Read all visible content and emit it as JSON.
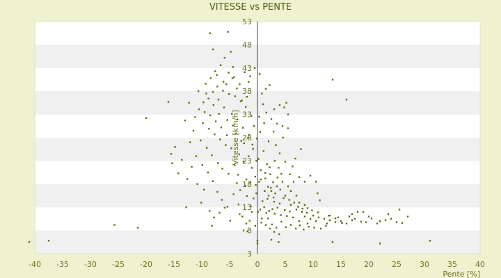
{
  "chart_data": {
    "type": "scatter",
    "title": "VITESSE vs PENTE",
    "xlabel": "Pente [%]",
    "ylabel": "Vitesse [km/h]",
    "xlim": [
      -40,
      40
    ],
    "ylim": [
      3,
      53
    ],
    "xticks": [
      -40,
      -35,
      -30,
      -25,
      -20,
      -15,
      -10,
      -5,
      0,
      5,
      10,
      15,
      20,
      25,
      30,
      35,
      40
    ],
    "yticks": [
      3,
      8,
      13,
      18,
      23,
      28,
      33,
      38,
      43,
      48,
      53
    ],
    "grid": "horizontal alternating bands",
    "colors": {
      "point": "#5e6e10",
      "band": "#f0f0f0",
      "plot_bg": "#ffffff",
      "axis": "#444444"
    },
    "points": [
      [
        -41,
        5.5
      ],
      [
        -37.5,
        5.8
      ],
      [
        -25.7,
        9.2
      ],
      [
        -21.5,
        8.6
      ],
      [
        -20,
        32.2
      ],
      [
        -16,
        35.7
      ],
      [
        -15.5,
        24.5
      ],
      [
        -15.3,
        22.5
      ],
      [
        -14.8,
        26
      ],
      [
        -13,
        31.7
      ],
      [
        -12.8,
        13
      ],
      [
        -12.3,
        35.5
      ],
      [
        -8.5,
        50.5
      ],
      [
        -5.3,
        50.8
      ],
      [
        -8,
        47
      ],
      [
        -4.8,
        46.5
      ],
      [
        -8.2,
        9
      ],
      [
        -3.5,
        20
      ],
      [
        -3.2,
        11.5
      ],
      [
        -2.5,
        8
      ],
      [
        -2,
        9.5
      ],
      [
        -1.8,
        7.8
      ],
      [
        -1,
        12
      ],
      [
        13.5,
        40.5
      ],
      [
        16,
        36.2
      ],
      [
        -4.4,
        43.2
      ],
      [
        -4.5,
        40.8
      ],
      [
        -5.6,
        39.5
      ],
      [
        -7.3,
        41.5
      ],
      [
        -9.2,
        37.5
      ],
      [
        -3.2,
        39.5
      ],
      [
        -1.6,
        40
      ],
      [
        1.5,
        38.5
      ],
      [
        2.2,
        39.3
      ],
      [
        0.8,
        37.5
      ],
      [
        -2.8,
        36
      ],
      [
        4,
        35
      ],
      [
        4.8,
        34.5
      ],
      [
        5.2,
        35.5
      ],
      [
        5.5,
        33
      ],
      [
        4.5,
        30.5
      ],
      [
        5.5,
        30
      ],
      [
        3.5,
        31
      ],
      [
        4.6,
        28
      ],
      [
        7.8,
        25.5
      ],
      [
        6.8,
        23.5
      ],
      [
        5,
        22.8
      ],
      [
        3.8,
        21.5
      ],
      [
        9.5,
        19.8
      ],
      [
        10.5,
        18.5
      ],
      [
        10.8,
        16
      ],
      [
        11.2,
        14.5
      ],
      [
        7.5,
        19.5
      ],
      [
        8.5,
        18.5
      ],
      [
        2,
        15.5
      ],
      [
        2.5,
        16.5
      ],
      [
        3.5,
        17.5
      ],
      [
        4.5,
        18.5
      ],
      [
        5.5,
        17.5
      ],
      [
        6.5,
        18.5
      ],
      [
        5,
        15.5
      ],
      [
        6,
        16.5
      ],
      [
        7,
        15.5
      ],
      [
        7.5,
        14
      ],
      [
        8.5,
        13.5
      ],
      [
        9,
        12.8
      ],
      [
        3,
        14.2
      ],
      [
        4,
        13.8
      ],
      [
        6,
        13.5
      ],
      [
        7,
        12.5
      ],
      [
        8,
        12
      ],
      [
        10,
        11.2
      ],
      [
        11,
        10.8
      ],
      [
        12,
        10.5
      ],
      [
        13,
        10.2
      ],
      [
        14,
        9.8
      ],
      [
        15,
        10
      ],
      [
        16,
        9.5
      ],
      [
        17,
        10.2
      ],
      [
        18,
        12
      ],
      [
        19,
        12
      ],
      [
        20,
        11
      ],
      [
        21.5,
        9.5
      ],
      [
        22,
        10
      ],
      [
        23,
        10.2
      ],
      [
        24,
        10.5
      ],
      [
        25,
        9.8
      ],
      [
        26,
        9.6
      ],
      [
        27,
        11
      ],
      [
        25.5,
        12.5
      ],
      [
        23.5,
        11.5
      ],
      [
        19.5,
        9.8
      ],
      [
        17.5,
        10.5
      ],
      [
        16.5,
        11
      ],
      [
        12.5,
        9.5
      ],
      [
        12.8,
        11.2
      ],
      [
        14.5,
        10.8
      ],
      [
        10.5,
        10
      ],
      [
        9.5,
        10.5
      ],
      [
        8.5,
        11
      ],
      [
        9,
        9.5
      ],
      [
        7.5,
        10
      ],
      [
        2.5,
        6
      ],
      [
        3.8,
        5.5
      ],
      [
        13.5,
        5.5
      ],
      [
        22,
        5.2
      ],
      [
        31,
        5.8
      ],
      [
        0,
        5.8
      ],
      [
        0,
        5.2
      ],
      [
        0.5,
        12.5
      ],
      [
        1.2,
        13
      ],
      [
        2.1,
        12.2
      ],
      [
        3.1,
        11.6
      ],
      [
        4.2,
        11.3
      ],
      [
        5.3,
        11.1
      ],
      [
        6.4,
        10.8
      ],
      [
        1.6,
        11.8
      ],
      [
        2.7,
        12.6
      ],
      [
        3.6,
        12.9
      ],
      [
        4.9,
        12.4
      ],
      [
        5.8,
        12.1
      ],
      [
        0.3,
        18.5
      ],
      [
        1.4,
        19.2
      ],
      [
        2.3,
        20.1
      ],
      [
        -0.4,
        19.6
      ],
      [
        -1.3,
        18.4
      ],
      [
        -2.2,
        17.6
      ],
      [
        -3.1,
        16.7
      ],
      [
        -1.9,
        15.4
      ],
      [
        -0.7,
        14.9
      ],
      [
        0.9,
        14.3
      ],
      [
        1.8,
        14.8
      ],
      [
        2.9,
        15.1
      ],
      [
        -5.5,
        28.5
      ],
      [
        -6.5,
        30.2
      ],
      [
        -7.5,
        31.5
      ],
      [
        -8.5,
        32.8
      ],
      [
        -9.5,
        33.5
      ],
      [
        -10.5,
        34.1
      ],
      [
        -11.5,
        29.5
      ],
      [
        -10.2,
        27.4
      ],
      [
        -9.1,
        25.8
      ],
      [
        -8.2,
        24.2
      ],
      [
        -7.1,
        22.5
      ],
      [
        -6.3,
        21.3
      ],
      [
        -5.2,
        20.2
      ],
      [
        -4.1,
        22.1
      ],
      [
        -3.3,
        24.4
      ],
      [
        -2.4,
        26.8
      ],
      [
        -1.5,
        28.6
      ],
      [
        -0.6,
        30.5
      ],
      [
        -1.1,
        32.7
      ],
      [
        -2.1,
        34.6
      ],
      [
        -3.0,
        35.8
      ],
      [
        -4.0,
        36.9
      ],
      [
        -5.1,
        37.4
      ],
      [
        -6.2,
        38.1
      ],
      [
        -7.0,
        36.2
      ],
      [
        -6.0,
        34.5
      ],
      [
        -4.6,
        33.1
      ],
      [
        -3.6,
        31.9
      ],
      [
        -2.6,
        30.1
      ],
      [
        -1.7,
        27.9
      ],
      [
        -0.8,
        25.6
      ],
      [
        0.2,
        23.4
      ],
      [
        1.1,
        25.1
      ],
      [
        2.0,
        27.2
      ],
      [
        2.9,
        29.3
      ],
      [
        3.3,
        26.4
      ],
      [
        1.7,
        22.3
      ],
      [
        0.6,
        21.0
      ],
      [
        -0.2,
        23.0
      ],
      [
        -1.0,
        21.5
      ],
      [
        -2.0,
        19.0
      ],
      [
        -3.7,
        18.2
      ],
      [
        -4.7,
        25.7
      ],
      [
        -5.7,
        26.4
      ],
      [
        -6.7,
        27.6
      ],
      [
        -7.7,
        28.7
      ],
      [
        -8.7,
        29.9
      ],
      [
        -9.8,
        31.1
      ],
      [
        -11.2,
        32.4
      ],
      [
        -12.1,
        27.0
      ],
      [
        -11.0,
        24.0
      ],
      [
        -9.9,
        22.1
      ],
      [
        -8.9,
        20.5
      ],
      [
        -8.0,
        18.6
      ],
      [
        -7.2,
        16.3
      ],
      [
        -6.4,
        14.6
      ],
      [
        -5.4,
        13.1
      ],
      [
        -4.3,
        15.8
      ],
      [
        -3.4,
        13.6
      ],
      [
        -2.7,
        11.0
      ],
      [
        -1.4,
        10.1
      ],
      [
        -0.4,
        9.0
      ],
      [
        0.7,
        9.7
      ],
      [
        1.9,
        10.6
      ],
      [
        2.6,
        9.3
      ],
      [
        3.4,
        8.6
      ],
      [
        4.3,
        9.9
      ],
      [
        5.1,
        8.7
      ],
      [
        6.0,
        9.2
      ],
      [
        6.9,
        8.4
      ],
      [
        7.6,
        9.1
      ],
      [
        8.3,
        8.2
      ],
      [
        9.2,
        8.8
      ],
      [
        10.2,
        8.6
      ],
      [
        11.4,
        8.4
      ],
      [
        12.3,
        9.0
      ],
      [
        1.3,
        16.5
      ],
      [
        2.4,
        17.2
      ],
      [
        3.2,
        16.0
      ],
      [
        4.1,
        16.8
      ],
      [
        4.7,
        15.0
      ],
      [
        5.7,
        14.6
      ],
      [
        6.6,
        14.0
      ],
      [
        7.3,
        13.1
      ],
      [
        8.1,
        12.7
      ],
      [
        8.9,
        11.8
      ],
      [
        9.8,
        12.3
      ],
      [
        10.9,
        11.9
      ],
      [
        -0.2,
        16.0
      ],
      [
        -1.2,
        13.2
      ],
      [
        0.1,
        12.0
      ],
      [
        0.8,
        10.6
      ],
      [
        1.5,
        9.2
      ],
      [
        2.2,
        8.4
      ],
      [
        3.0,
        7.7
      ],
      [
        3.9,
        7.2
      ],
      [
        -14.2,
        20.3
      ],
      [
        -13.6,
        23.2
      ],
      [
        -12.6,
        19.1
      ],
      [
        -11.8,
        21.7
      ],
      [
        -10.8,
        18.0
      ],
      [
        -9.6,
        16.8
      ],
      [
        -10.1,
        14.0
      ],
      [
        -8.6,
        12.2
      ],
      [
        -7.8,
        10.8
      ],
      [
        -6.8,
        11.8
      ],
      [
        -5.9,
        12.9
      ],
      [
        -4.9,
        10.1
      ],
      [
        -2.9,
        27.3
      ],
      [
        -3.9,
        28.9
      ],
      [
        -4.4,
        30.6
      ],
      [
        -5.4,
        31.8
      ],
      [
        -6.9,
        33.1
      ],
      [
        -7.9,
        35.0
      ],
      [
        -8.8,
        36.4
      ],
      [
        -9.7,
        35.6
      ],
      [
        -10.6,
        38.0
      ],
      [
        -9.3,
        39.6
      ],
      [
        -8.4,
        40.8
      ],
      [
        -7.6,
        42.3
      ],
      [
        -6.6,
        43.6
      ],
      [
        -5.9,
        45.2
      ],
      [
        -2.3,
        42.1
      ],
      [
        -1.3,
        41.2
      ],
      [
        -0.5,
        43.0
      ],
      [
        0.4,
        41.7
      ],
      [
        1.0,
        35.2
      ],
      [
        1.6,
        33.4
      ],
      [
        2.5,
        32.0
      ],
      [
        3.0,
        34.1
      ],
      [
        0.5,
        29.2
      ],
      [
        1.2,
        31.1
      ],
      [
        4.0,
        24.6
      ],
      [
        3.1,
        23.0
      ],
      [
        2.2,
        21.6
      ],
      [
        1.4,
        20.4
      ],
      [
        0.6,
        19.0
      ],
      [
        -0.3,
        17.8
      ],
      [
        5.8,
        20.1
      ],
      [
        6.3,
        21.8
      ],
      [
        4.3,
        20.2
      ],
      [
        3.6,
        19.4
      ],
      [
        2.8,
        18.4
      ],
      [
        1.9,
        17.4
      ],
      [
        -2.5,
        22.8
      ],
      [
        -1.6,
        24.0
      ],
      [
        -0.9,
        26.5
      ],
      [
        -0.1,
        27.8
      ],
      [
        0.3,
        32.5
      ],
      [
        -1.9,
        36.8
      ],
      [
        -3.7,
        38.6
      ],
      [
        -4.2,
        41.0
      ],
      [
        -5.2,
        42.0
      ],
      [
        -6.1,
        40.0
      ],
      [
        -7.2,
        39.0
      ],
      [
        -8.0,
        37.8
      ],
      [
        13.0,
        11.2
      ],
      [
        14.0,
        10.6
      ],
      [
        15.2,
        9.6
      ],
      [
        17.0,
        11.5
      ],
      [
        18.6,
        9.9
      ],
      [
        20.5,
        10.6
      ]
    ]
  }
}
